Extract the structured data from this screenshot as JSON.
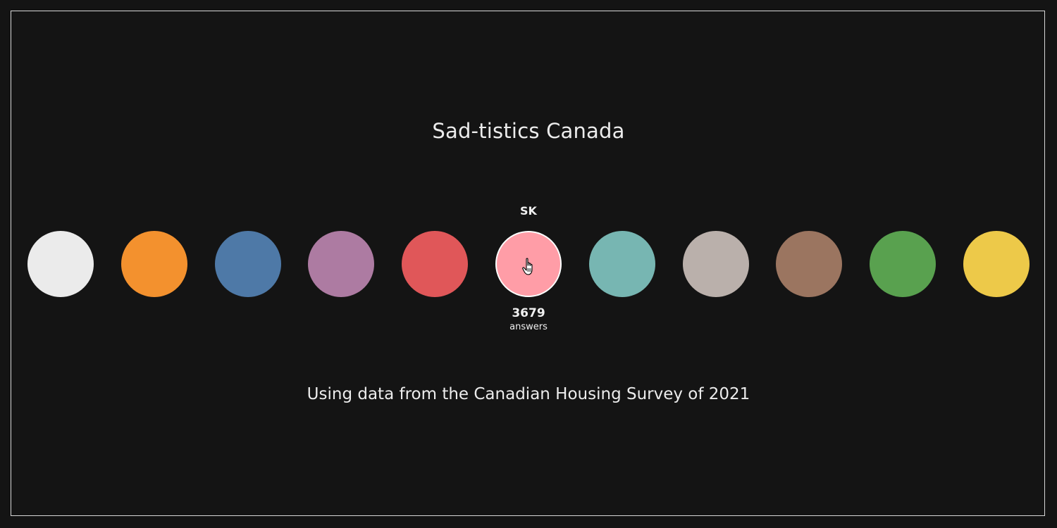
{
  "page": {
    "title": "Sad-tistics Canada",
    "subtitle": "Using data from the Canadian Housing Survey of 2021"
  },
  "circles": [
    {
      "color": "#ebebeb"
    },
    {
      "color": "#f3912e"
    },
    {
      "color": "#4e79a7"
    },
    {
      "color": "#ad7ba2"
    },
    {
      "color": "#e05759"
    },
    {
      "color": "#ff9da7",
      "active": true
    },
    {
      "color": "#77b6b2"
    },
    {
      "color": "#bab0ab"
    },
    {
      "color": "#9b7560"
    },
    {
      "color": "#59a14f"
    },
    {
      "color": "#edc949"
    }
  ],
  "hover": {
    "label": "SK",
    "count": "3679",
    "count_unit": "answers"
  },
  "icons": {
    "cursor": "hand-pointer-icon"
  }
}
